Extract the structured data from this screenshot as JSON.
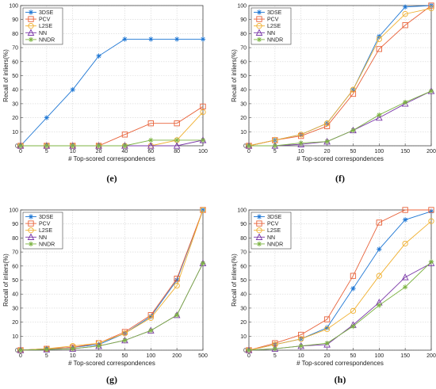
{
  "chart_data": [
    {
      "type": "line",
      "panel": "(e)",
      "x": [
        "0",
        "5",
        "10",
        "20",
        "40",
        "60",
        "80",
        "100"
      ],
      "xlabel": "# Top-scored correspondences",
      "ylabel": "Recall of inliers(%)",
      "ylim": [
        0,
        100
      ],
      "yticks": [
        0,
        10,
        20,
        30,
        40,
        50,
        60,
        70,
        80,
        90,
        100
      ],
      "grid": true,
      "legend_position": "top-left",
      "series": [
        {
          "name": "3DSE",
          "color": "#1f77d4",
          "marker": "star",
          "values": [
            0,
            20,
            40,
            64,
            76,
            76,
            76,
            76
          ]
        },
        {
          "name": "PCV",
          "color": "#e8623a",
          "marker": "square",
          "values": [
            0,
            0,
            0,
            0,
            8,
            16,
            16,
            28
          ]
        },
        {
          "name": "L2SE",
          "color": "#f0b030",
          "marker": "circle",
          "values": [
            0,
            0,
            0,
            0,
            0,
            0,
            4,
            24
          ]
        },
        {
          "name": "NN",
          "color": "#7a38a8",
          "marker": "triangle",
          "values": [
            0,
            0,
            0,
            0,
            0,
            0,
            0,
            4
          ]
        },
        {
          "name": "NNDR",
          "color": "#7cb342",
          "marker": "star",
          "values": [
            0,
            0,
            0,
            0,
            0,
            4,
            4,
            4
          ]
        }
      ]
    },
    {
      "type": "line",
      "panel": "(f)",
      "x": [
        "0",
        "5",
        "10",
        "20",
        "50",
        "100",
        "150",
        "200"
      ],
      "xlabel": "# Top-scored correspondences",
      "ylabel": "Recall of inliers(%)",
      "ylim": [
        0,
        100
      ],
      "yticks": [
        0,
        10,
        20,
        30,
        40,
        50,
        60,
        70,
        80,
        90,
        100
      ],
      "grid": true,
      "legend_position": "top-left",
      "series": [
        {
          "name": "3DSE",
          "color": "#1f77d4",
          "marker": "star",
          "values": [
            0,
            4,
            8,
            16,
            40,
            78,
            99,
            100
          ]
        },
        {
          "name": "PCV",
          "color": "#e8623a",
          "marker": "square",
          "values": [
            0,
            4,
            7,
            14,
            37,
            69,
            86,
            100
          ]
        },
        {
          "name": "L2SE",
          "color": "#f0b030",
          "marker": "circle",
          "values": [
            0,
            4,
            8,
            16,
            40,
            76,
            94,
            98
          ]
        },
        {
          "name": "NN",
          "color": "#7a38a8",
          "marker": "triangle",
          "values": [
            0,
            0,
            1,
            3,
            11,
            20,
            30,
            39
          ]
        },
        {
          "name": "NNDR",
          "color": "#7cb342",
          "marker": "star",
          "values": [
            0,
            0,
            2,
            3,
            11,
            22,
            31,
            39
          ]
        }
      ]
    },
    {
      "type": "line",
      "panel": "(g)",
      "x": [
        "0",
        "5",
        "10",
        "20",
        "50",
        "100",
        "200",
        "500"
      ],
      "xlabel": "# Top-scored correspondences",
      "ylabel": "Recall of inliers(%)",
      "ylim": [
        0,
        100
      ],
      "yticks": [
        0,
        10,
        20,
        30,
        40,
        50,
        60,
        70,
        80,
        90,
        100
      ],
      "grid": true,
      "legend_position": "top-left",
      "series": [
        {
          "name": "3DSE",
          "color": "#1f77d4",
          "marker": "star",
          "values": [
            0,
            1,
            2,
            4,
            12,
            24,
            50,
            100
          ]
        },
        {
          "name": "PCV",
          "color": "#e8623a",
          "marker": "square",
          "values": [
            0,
            1,
            2,
            5,
            13,
            25,
            51,
            100
          ]
        },
        {
          "name": "L2SE",
          "color": "#f0b030",
          "marker": "circle",
          "values": [
            0,
            1,
            3,
            5,
            12,
            23,
            46,
            100
          ]
        },
        {
          "name": "NN",
          "color": "#7a38a8",
          "marker": "triangle",
          "values": [
            0,
            0.5,
            1,
            3,
            7,
            14,
            25,
            62
          ]
        },
        {
          "name": "NNDR",
          "color": "#7cb342",
          "marker": "star",
          "values": [
            0,
            0.5,
            1,
            3,
            7,
            14,
            25,
            62
          ]
        }
      ]
    },
    {
      "type": "line",
      "panel": "(h)",
      "x": [
        "0",
        "5",
        "10",
        "20",
        "50",
        "100",
        "150",
        "200"
      ],
      "xlabel": "# Top-scored correspondences",
      "ylabel": "Recall of inliers(%)",
      "ylim": [
        0,
        100
      ],
      "yticks": [
        0,
        10,
        20,
        30,
        40,
        50,
        60,
        70,
        80,
        90,
        100
      ],
      "grid": true,
      "legend_position": "top-left",
      "series": [
        {
          "name": "3DSE",
          "color": "#1f77d4",
          "marker": "star",
          "values": [
            0,
            4,
            8,
            16,
            44,
            72,
            93,
            99
          ]
        },
        {
          "name": "PCV",
          "color": "#e8623a",
          "marker": "square",
          "values": [
            0,
            5,
            11,
            22,
            53,
            91,
            100,
            100
          ]
        },
        {
          "name": "L2SE",
          "color": "#f0b030",
          "marker": "circle",
          "values": [
            0,
            4,
            8,
            15,
            28,
            53,
            76,
            92
          ]
        },
        {
          "name": "NN",
          "color": "#7a38a8",
          "marker": "triangle",
          "values": [
            0,
            1,
            3,
            4,
            18,
            34,
            52,
            62
          ]
        },
        {
          "name": "NNDR",
          "color": "#7cb342",
          "marker": "star",
          "values": [
            0,
            1,
            3,
            5,
            17,
            32,
            45,
            63
          ]
        }
      ]
    }
  ]
}
